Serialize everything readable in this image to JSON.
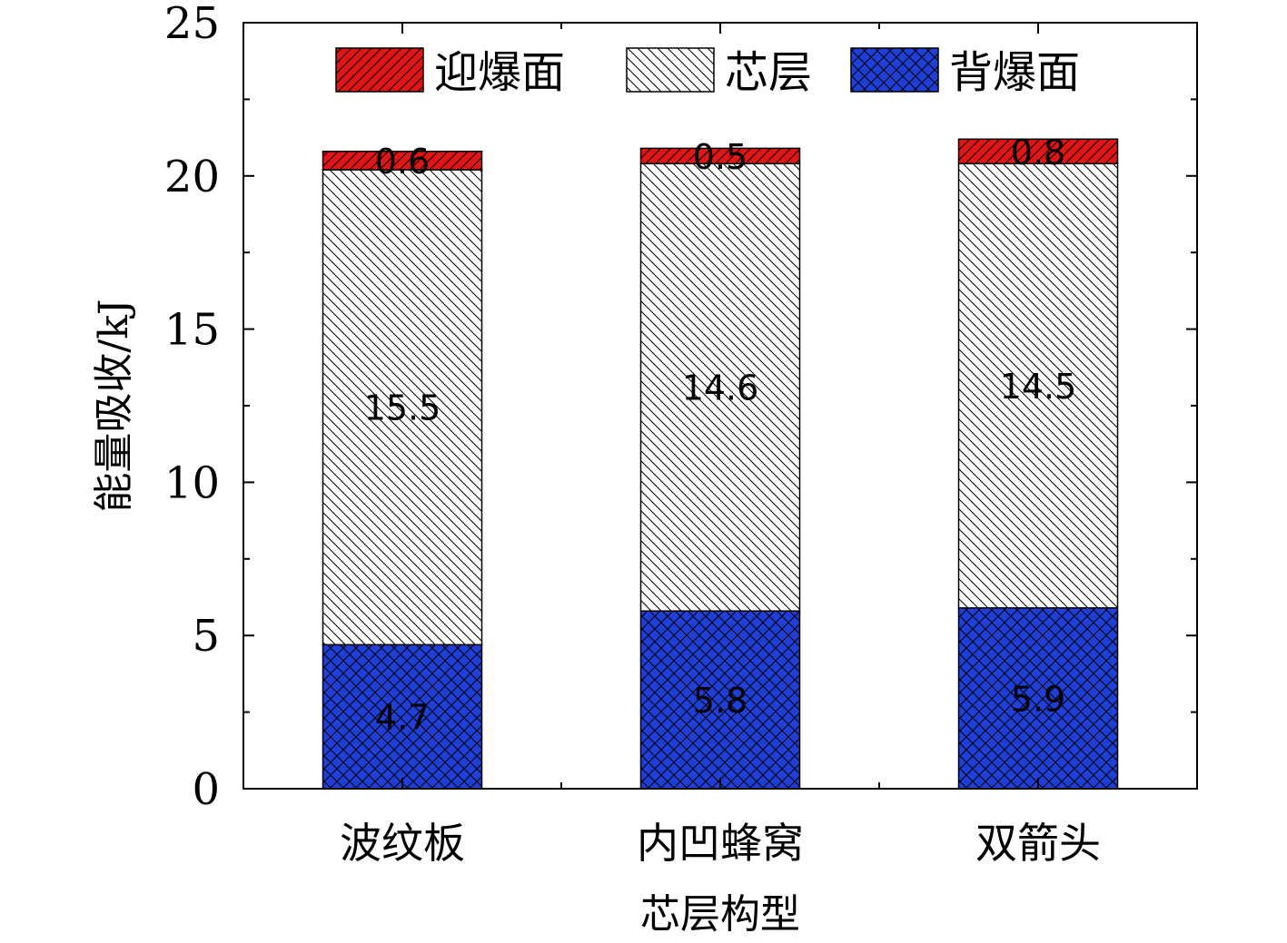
{
  "chart_data": {
    "type": "bar",
    "stacked": true,
    "categories": [
      "波纹板",
      "内凹蜂窝",
      "双箭头"
    ],
    "series": [
      {
        "name": "背爆面",
        "values": [
          4.7,
          5.8,
          5.9
        ],
        "color": "#1f3fd6",
        "pattern": "crosshatch"
      },
      {
        "name": "芯层",
        "values": [
          15.5,
          14.6,
          14.5
        ],
        "color": "#ffffff",
        "pattern": "backslash"
      },
      {
        "name": "迎爆面",
        "values": [
          0.6,
          0.5,
          0.8
        ],
        "color": "#e01515",
        "pattern": "slash"
      }
    ],
    "legend_order": [
      "迎爆面",
      "芯层",
      "背爆面"
    ],
    "xlabel": "芯层构型",
    "ylabel": "能量吸收/kJ",
    "ylim": [
      0,
      25
    ],
    "yticks": [
      0,
      5,
      10,
      15,
      20,
      25
    ],
    "grid": false,
    "legend_position": "top",
    "data_labels": true
  }
}
